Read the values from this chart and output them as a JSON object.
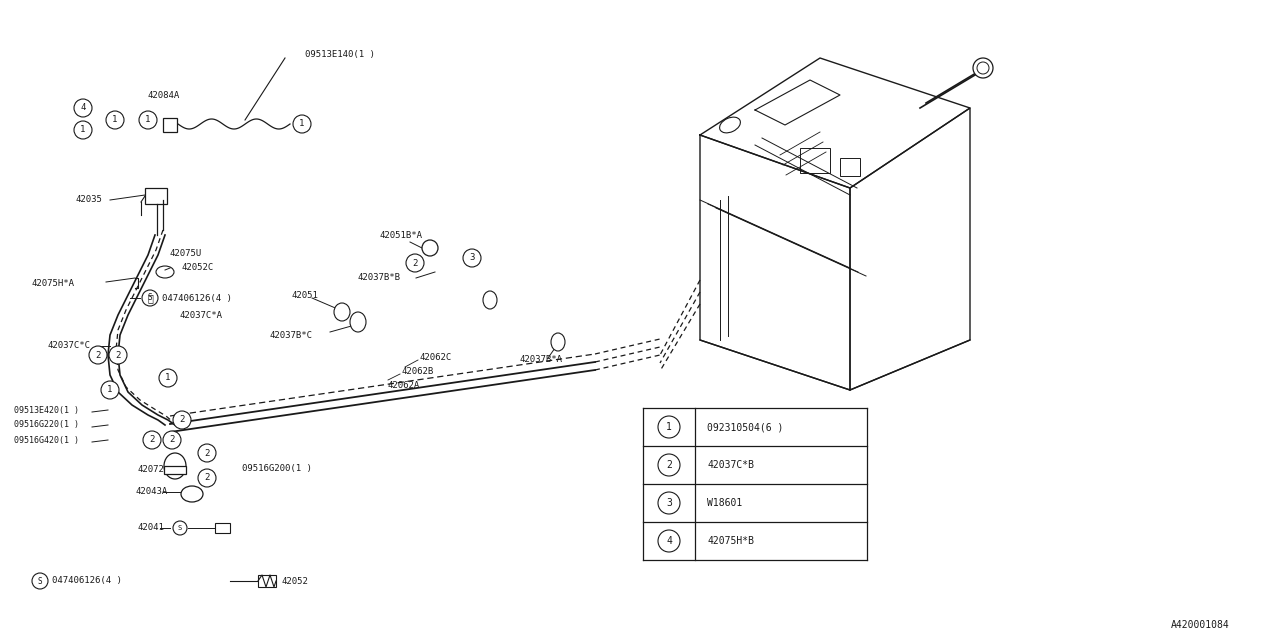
{
  "bg_color": "#ffffff",
  "line_color": "#1a1a1a",
  "diagram_id": "A420001084",
  "legend_items": [
    {
      "num": "1",
      "text": "092310504(6 )"
    },
    {
      "num": "2",
      "text": "42037C*B"
    },
    {
      "num": "3",
      "text": "W18601"
    },
    {
      "num": "4",
      "text": "42075H*B"
    }
  ]
}
